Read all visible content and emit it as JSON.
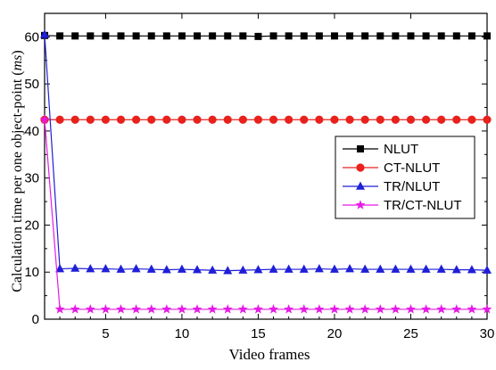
{
  "chart_data": {
    "type": "line",
    "title": "",
    "xlabel": "Video frames",
    "ylabel": "Calculation time per one object-point (ms)",
    "ylabel_parts": {
      "text": "Calculation time per one object-point (",
      "unit": "ms",
      "close": ")"
    },
    "xlim": [
      1,
      30
    ],
    "ylim": [
      0,
      65
    ],
    "xticks": [
      5,
      10,
      15,
      20,
      25,
      30
    ],
    "yticks": [
      0,
      10,
      20,
      30,
      40,
      50,
      60
    ],
    "grid": false,
    "legend_position": "right",
    "x": [
      1,
      2,
      3,
      4,
      5,
      6,
      7,
      8,
      9,
      10,
      11,
      12,
      13,
      14,
      15,
      16,
      17,
      18,
      19,
      20,
      21,
      22,
      23,
      24,
      25,
      26,
      27,
      28,
      29,
      30
    ],
    "series": [
      {
        "name": "NLUT",
        "color": "#000000",
        "marker": "square",
        "values": [
          60.3,
          60.2,
          60.2,
          60.2,
          60.2,
          60.2,
          60.2,
          60.2,
          60.2,
          60.2,
          60.2,
          60.2,
          60.2,
          60.2,
          60.1,
          60.2,
          60.2,
          60.2,
          60.2,
          60.2,
          60.2,
          60.2,
          60.2,
          60.2,
          60.2,
          60.2,
          60.2,
          60.2,
          60.2,
          60.2
        ]
      },
      {
        "name": "CT-NLUT",
        "color": "#e8211d",
        "marker": "circle",
        "values": [
          42.4,
          42.4,
          42.4,
          42.4,
          42.4,
          42.4,
          42.4,
          42.4,
          42.4,
          42.4,
          42.4,
          42.4,
          42.4,
          42.4,
          42.4,
          42.4,
          42.4,
          42.4,
          42.4,
          42.4,
          42.4,
          42.4,
          42.4,
          42.4,
          42.4,
          42.4,
          42.4,
          42.4,
          42.4,
          42.4
        ]
      },
      {
        "name": "TR/NLUT",
        "color": "#1f1fd8",
        "marker": "triangle",
        "values": [
          60.5,
          10.7,
          10.8,
          10.7,
          10.7,
          10.6,
          10.7,
          10.6,
          10.5,
          10.6,
          10.5,
          10.4,
          10.3,
          10.4,
          10.5,
          10.6,
          10.6,
          10.6,
          10.7,
          10.6,
          10.7,
          10.6,
          10.6,
          10.6,
          10.6,
          10.6,
          10.6,
          10.5,
          10.5,
          10.4
        ]
      },
      {
        "name": "TR/CT-NLUT",
        "color": "#e619e6",
        "marker": "star",
        "values": [
          42.4,
          2.1,
          2.1,
          2.1,
          2.1,
          2.1,
          2.1,
          2.1,
          2.1,
          2.1,
          2.1,
          2.1,
          2.1,
          2.1,
          2.1,
          2.1,
          2.1,
          2.1,
          2.1,
          2.1,
          2.1,
          2.1,
          2.1,
          2.1,
          2.1,
          2.1,
          2.1,
          2.1,
          2.1,
          2.1
        ]
      }
    ]
  }
}
